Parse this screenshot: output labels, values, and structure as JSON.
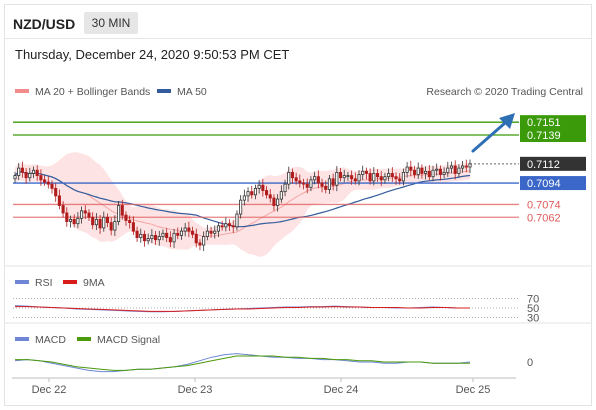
{
  "header": {
    "symbol": "NZD/USD",
    "interval": "30 MIN",
    "datetime": "Thursday, December 24, 2020 9:50:53 PM CET"
  },
  "colors": {
    "bollinger_band": "#f28b8b",
    "bollinger_fill": "#fde3e3",
    "ma50": "#335c9c",
    "resistance": "#3a9a0a",
    "pivot": "#3a67c8",
    "support": "#e05a5a",
    "rsi_line": "#6f86d6",
    "rsi_ma": "#d81c1c",
    "macd_line": "#6f86d6",
    "macd_signal": "#4a9a0a",
    "candle_up": "#333333",
    "candle_down": "#b11c1c"
  },
  "chart_data": [
    {
      "type": "candlestick",
      "panel": "price",
      "legend": [
        "MA 20 + Bollinger Bands",
        "MA 50"
      ],
      "attribution": "Research © 2020 Trading Central",
      "x_ticks": [
        "Dec 22",
        "Dec 23",
        "Dec 24",
        "Dec 25"
      ],
      "ylim": [
        0.7022,
        0.7168
      ],
      "last_price": 0.7112,
      "levels": [
        {
          "value": 0.7151,
          "label": "0.7151",
          "kind": "resistance"
        },
        {
          "value": 0.7139,
          "label": "0.7139",
          "kind": "resistance"
        },
        {
          "value": 0.7112,
          "label": "0.7112",
          "kind": "last"
        },
        {
          "value": 0.7094,
          "label": "0.7094",
          "kind": "pivot"
        },
        {
          "value": 0.7074,
          "label": "0.7074",
          "kind": "support"
        },
        {
          "value": 0.7062,
          "label": "0.7062",
          "kind": "support"
        }
      ],
      "close": [
        0.7101,
        0.7108,
        0.7104,
        0.7099,
        0.7103,
        0.7106,
        0.7101,
        0.7097,
        0.7095,
        0.7093,
        0.7089,
        0.7082,
        0.7073,
        0.7066,
        0.7058,
        0.706,
        0.7056,
        0.7061,
        0.7068,
        0.7066,
        0.7062,
        0.7055,
        0.706,
        0.7052,
        0.7062,
        0.7057,
        0.705,
        0.7058,
        0.7073,
        0.7064,
        0.7059,
        0.7057,
        0.7049,
        0.7043,
        0.7046,
        0.704,
        0.7042,
        0.7045,
        0.7041,
        0.7044,
        0.7047,
        0.7043,
        0.7039,
        0.7047,
        0.7045,
        0.7049,
        0.7052,
        0.7049,
        0.7046,
        0.7038,
        0.7036,
        0.7044,
        0.7049,
        0.7047,
        0.7049,
        0.7054,
        0.7053,
        0.7056,
        0.7054,
        0.7053,
        0.7065,
        0.7078,
        0.7082,
        0.7086,
        0.7083,
        0.7089,
        0.7092,
        0.7087,
        0.7083,
        0.708,
        0.7073,
        0.7079,
        0.7086,
        0.7093,
        0.7104,
        0.7099,
        0.7096,
        0.7094,
        0.7093,
        0.709,
        0.7097,
        0.71,
        0.7094,
        0.7091,
        0.7088,
        0.7098,
        0.7092,
        0.7104,
        0.7099,
        0.7101,
        0.7101,
        0.7098,
        0.7096,
        0.7102,
        0.7105,
        0.7103,
        0.7096,
        0.7103,
        0.71,
        0.7097,
        0.71,
        0.7103,
        0.71,
        0.7098,
        0.7096,
        0.7104,
        0.7109,
        0.7106,
        0.7102,
        0.7108,
        0.7103,
        0.7105,
        0.71,
        0.7106,
        0.7107,
        0.7102,
        0.7104,
        0.7108,
        0.711,
        0.7103,
        0.7108,
        0.711,
        0.7109,
        0.7112
      ]
    },
    {
      "type": "line",
      "panel": "rsi",
      "legend": [
        "RSI",
        "9MA"
      ],
      "levels": [
        70,
        50,
        30
      ],
      "ylim": [
        25,
        75
      ],
      "series": [
        {
          "name": "RSI",
          "values": [
            55,
            54,
            52,
            51,
            50,
            48,
            47,
            46,
            45,
            44,
            43,
            42,
            42,
            43,
            44,
            45,
            46,
            47,
            48,
            49,
            50,
            51,
            52,
            52,
            53,
            53,
            54,
            53,
            52,
            51,
            51,
            50,
            50,
            51,
            52,
            51,
            50,
            50
          ]
        },
        {
          "name": "9MA",
          "values": [
            53,
            53,
            52,
            51,
            50,
            49,
            48,
            47,
            46,
            45,
            44,
            43,
            43,
            43,
            44,
            45,
            46,
            47,
            48,
            48,
            49,
            50,
            51,
            51,
            52,
            52,
            53,
            52,
            52,
            51,
            51,
            51,
            50,
            50,
            51,
            51,
            50,
            50
          ]
        }
      ]
    },
    {
      "type": "line",
      "panel": "macd",
      "legend": [
        "MACD",
        "MACD Signal"
      ],
      "levels": [
        0
      ],
      "ylim": [
        -10,
        10
      ],
      "series": [
        {
          "name": "MACD",
          "values": [
            1,
            2,
            1,
            -1,
            -3,
            -5,
            -7,
            -8,
            -8,
            -7,
            -6,
            -6,
            -5,
            -4,
            -2,
            1,
            4,
            6,
            7,
            6,
            5,
            4,
            4,
            3,
            3,
            2,
            2,
            1,
            0,
            0,
            -1,
            -1,
            0,
            0,
            -1,
            -1,
            -1,
            0
          ]
        },
        {
          "name": "MACD Signal",
          "values": [
            2,
            2,
            1,
            0,
            -2,
            -4,
            -5,
            -6,
            -7,
            -7,
            -6,
            -6,
            -5,
            -4,
            -3,
            -1,
            1,
            3,
            5,
            5,
            5,
            5,
            4,
            4,
            3,
            3,
            2,
            2,
            1,
            1,
            0,
            0,
            0,
            0,
            -1,
            -1,
            -1,
            -1
          ]
        }
      ]
    }
  ]
}
